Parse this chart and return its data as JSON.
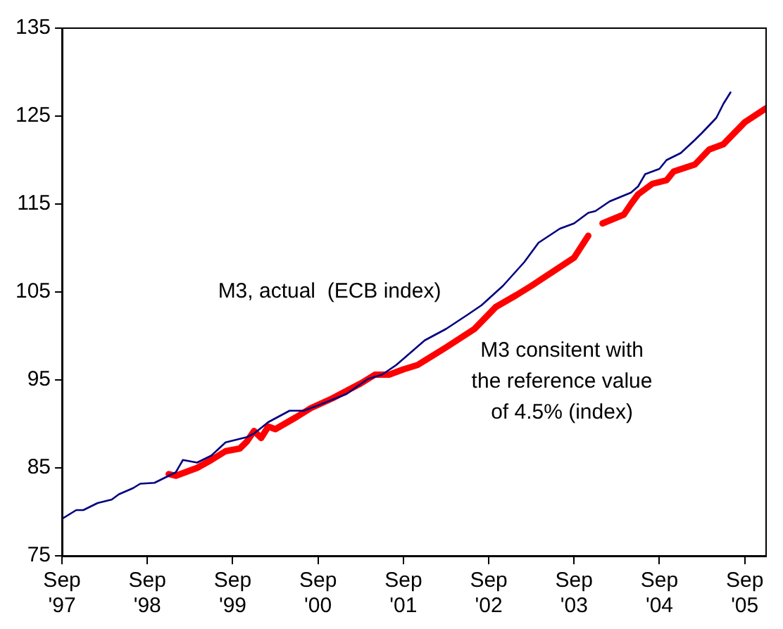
{
  "chart_data": {
    "type": "line",
    "xlim": [
      "1997-09",
      "2005-12"
    ],
    "xticks": [
      {
        "value": "1997-09",
        "label": "Sep '97"
      },
      {
        "value": "1998-09",
        "label": "Sep '98"
      },
      {
        "value": "1999-09",
        "label": "Sep '99"
      },
      {
        "value": "2000-09",
        "label": "Sep '00"
      },
      {
        "value": "2001-09",
        "label": "Sep '01"
      },
      {
        "value": "2002-09",
        "label": "Sep '02"
      },
      {
        "value": "2003-09",
        "label": "Sep '03"
      },
      {
        "value": "2004-09",
        "label": "Sep '04"
      },
      {
        "value": "2005-09",
        "label": "Sep '05"
      }
    ],
    "ylim": [
      75,
      135
    ],
    "yticks": [
      75,
      85,
      95,
      105,
      115,
      125,
      135
    ],
    "grid": false,
    "legend": false,
    "marker": "none",
    "series": [
      {
        "name": "M3, actual  (ECB index)",
        "color": "#000080",
        "x": [
          "1997-09",
          "1997-11",
          "1997-12",
          "1998-02",
          "1998-04",
          "1998-05",
          "1998-07",
          "1998-08",
          "1998-10",
          "1998-12",
          "1999-01",
          "1999-02",
          "1999-04",
          "1999-06",
          "1999-08",
          "1999-11",
          "1999-12",
          "2000-02",
          "2000-05",
          "2000-07",
          "2000-09",
          "2001-01",
          "2001-04",
          "2001-06",
          "2001-08",
          "2001-12",
          "2002-03",
          "2002-06",
          "2002-08",
          "2002-11",
          "2003-02",
          "2003-04",
          "2003-07",
          "2003-09",
          "2003-11",
          "2003-12",
          "2004-02",
          "2004-05",
          "2004-06",
          "2004-07",
          "2004-09",
          "2004-10",
          "2004-12",
          "2005-02",
          "2005-03",
          "2005-05",
          "2005-06",
          "2005-07"
        ],
        "values": [
          79.2,
          80.2,
          80.2,
          81.0,
          81.4,
          82.0,
          82.7,
          83.2,
          83.3,
          84.1,
          84.5,
          85.9,
          85.6,
          86.4,
          87.9,
          88.5,
          88.9,
          90.2,
          91.5,
          91.5,
          92.1,
          93.4,
          95.1,
          95.6,
          96.7,
          99.5,
          100.8,
          102.4,
          103.5,
          105.7,
          108.4,
          110.6,
          112.2,
          112.8,
          114.0,
          114.2,
          115.3,
          116.3,
          117.0,
          118.4,
          119.0,
          120.0,
          120.8,
          122.3,
          123.1,
          124.8,
          126.4,
          127.7
        ]
      },
      {
        "name": "M3 consitent with the reference value of 4.5% (index)",
        "color": "#ff0000",
        "x": [
          "1998-12",
          "1999-01",
          "1999-04",
          "1999-06",
          "1999-08",
          "1999-10",
          "1999-11",
          "1999-12",
          "2000-01",
          "2000-02",
          "2000-03",
          "2000-06",
          "2000-08",
          "2000-11",
          "2001-03",
          "2001-05",
          "2001-07",
          "2001-09",
          "2001-11",
          "2002-03",
          "2002-07",
          "2002-10",
          "2003-01",
          "2003-03",
          "2003-06",
          "2003-09",
          "2003-11",
          "2003-12",
          "2004-01",
          "2004-04",
          "2004-05",
          "2004-06",
          "2004-08",
          "2004-10",
          "2004-11",
          "2005-02",
          "2005-04",
          "2005-06",
          "2005-09",
          "2005-12"
        ],
        "values": [
          84.3,
          84.1,
          85.0,
          85.9,
          86.9,
          87.2,
          88.0,
          89.2,
          88.4,
          89.7,
          89.4,
          90.8,
          91.8,
          92.9,
          94.6,
          95.6,
          95.6,
          96.2,
          96.7,
          98.7,
          100.8,
          103.3,
          104.7,
          105.7,
          107.3,
          108.9,
          111.4,
          null,
          112.8,
          113.8,
          115.0,
          116.1,
          117.3,
          117.7,
          118.7,
          119.5,
          121.2,
          121.8,
          124.3,
          125.9
        ]
      }
    ]
  }
}
